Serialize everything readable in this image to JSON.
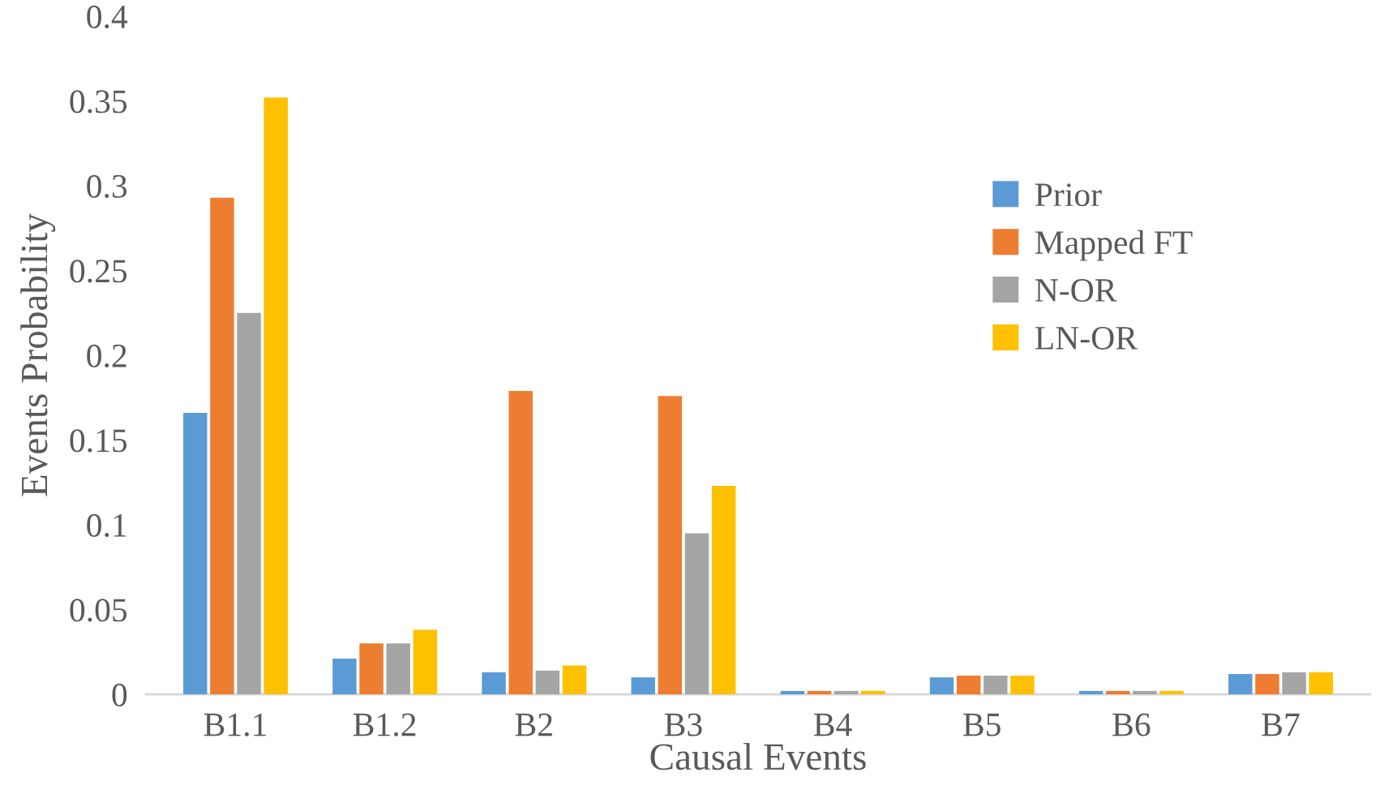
{
  "chart_data": {
    "type": "bar",
    "xlabel": "Causal Events",
    "ylabel": "Events Probability",
    "categories": [
      "B1.1",
      "B1.2",
      "B2",
      "B3",
      "B4",
      "B5",
      "B6",
      "B7"
    ],
    "series": [
      {
        "name": "Prior",
        "color": "#5b9bd5",
        "values": [
          0.166,
          0.021,
          0.013,
          0.01,
          0.002,
          0.01,
          0.002,
          0.012
        ]
      },
      {
        "name": "Mapped FT",
        "color": "#ed7d31",
        "values": [
          0.293,
          0.03,
          0.179,
          0.176,
          0.002,
          0.011,
          0.002,
          0.012
        ]
      },
      {
        "name": "N-OR",
        "color": "#a5a5a5",
        "values": [
          0.225,
          0.03,
          0.014,
          0.095,
          0.002,
          0.011,
          0.002,
          0.013
        ]
      },
      {
        "name": "LN-OR",
        "color": "#ffc000",
        "values": [
          0.352,
          0.038,
          0.017,
          0.123,
          0.002,
          0.011,
          0.002,
          0.013
        ]
      }
    ],
    "ylim": [
      0,
      0.4
    ],
    "yticks": [
      0,
      0.05,
      0.1,
      0.15,
      0.2,
      0.25,
      0.3,
      0.35,
      0.4
    ],
    "grid": false,
    "legend": "top right"
  }
}
